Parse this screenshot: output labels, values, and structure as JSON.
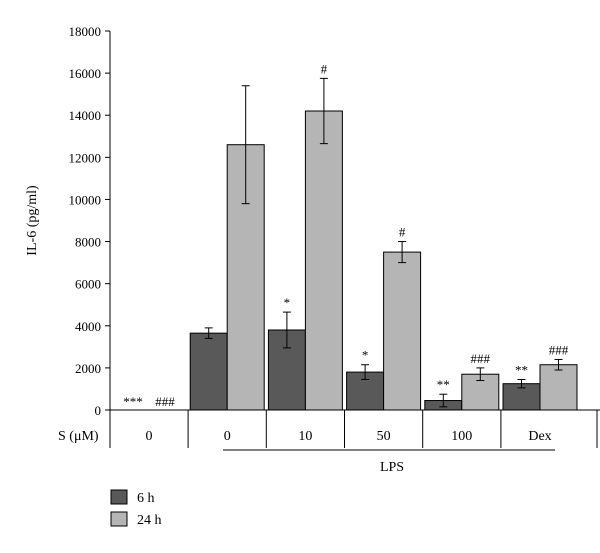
{
  "chart_data": {
    "type": "bar",
    "title": "",
    "ylabel": "IL-6 (pg/ml)",
    "ylim": [
      0,
      18000
    ],
    "yticks": [
      "0",
      "2000",
      "4000",
      "6000",
      "8000",
      "10000",
      "12000",
      "14000",
      "16000",
      "18000"
    ],
    "x_row_label": "S (μM)",
    "categories": [
      "0",
      "0",
      "10",
      "50",
      "100",
      "Dex"
    ],
    "group_label": "LPS",
    "grid": false,
    "legend_position": "bottom-left",
    "series": [
      {
        "name": "6 h",
        "color": "#595959",
        "values": [
          0,
          3650,
          3800,
          1800,
          450,
          1250
        ],
        "errors": [
          0,
          250,
          850,
          350,
          300,
          200
        ],
        "annotations": [
          "***",
          "",
          "*",
          "*",
          "**",
          "**"
        ]
      },
      {
        "name": "24 h",
        "color": "#b5b5b5",
        "values": [
          0,
          12600,
          14200,
          7500,
          1700,
          2150
        ],
        "errors": [
          0,
          2800,
          1550,
          500,
          300,
          250
        ],
        "annotations": [
          "###",
          "",
          "#",
          "#",
          "###",
          "###"
        ]
      }
    ]
  }
}
